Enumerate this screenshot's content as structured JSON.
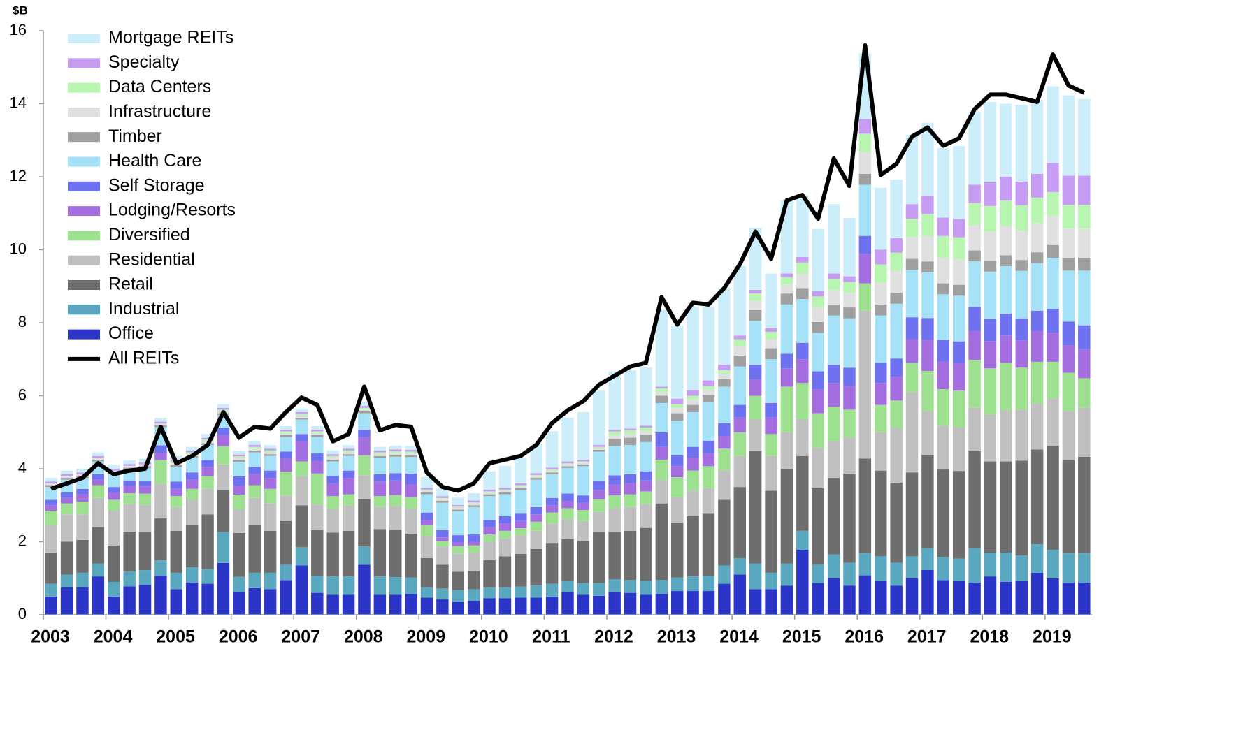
{
  "chart_data": {
    "type": "bar",
    "stacked": true,
    "y_unit_label": "$B",
    "categories": [
      "2003",
      null,
      null,
      null,
      "2004",
      null,
      null,
      null,
      "2005",
      null,
      null,
      null,
      "2006",
      null,
      null,
      null,
      "2007",
      null,
      null,
      null,
      "2008",
      null,
      null,
      null,
      "2009",
      null,
      null,
      null,
      "2010",
      null,
      null,
      null,
      "2011",
      null,
      null,
      null,
      "2012",
      null,
      null,
      null,
      "2013",
      null,
      null,
      null,
      "2014",
      null,
      null,
      null,
      "2015",
      null,
      null,
      null,
      "2016",
      null,
      null,
      null,
      "2017",
      null,
      null,
      null,
      "2018",
      null,
      null,
      null,
      "2019",
      null,
      null
    ],
    "ylim": [
      0,
      16
    ],
    "yticks": [
      0,
      2,
      4,
      6,
      8,
      10,
      12,
      14,
      16
    ],
    "grid": false,
    "legend": "upper left",
    "series": [
      {
        "name": "Office",
        "color": "#2b35c8",
        "values": [
          0.5,
          0.75,
          0.75,
          1.05,
          0.5,
          0.78,
          0.82,
          1.07,
          0.7,
          0.88,
          0.85,
          1.42,
          0.62,
          0.73,
          0.7,
          0.95,
          1.35,
          0.6,
          0.55,
          0.55,
          1.37,
          0.55,
          0.55,
          0.57,
          0.47,
          0.42,
          0.35,
          0.38,
          0.45,
          0.45,
          0.47,
          0.47,
          0.5,
          0.62,
          0.55,
          0.52,
          0.62,
          0.6,
          0.55,
          0.57,
          0.65,
          0.65,
          0.65,
          0.85,
          1.1,
          0.7,
          0.7,
          0.8,
          1.78,
          0.87,
          1.0,
          0.8,
          1.08,
          0.92,
          0.8,
          1.0,
          1.23,
          0.95,
          0.92,
          0.88,
          1.05,
          0.9,
          0.92,
          1.15,
          1.0,
          0.88,
          0.88
        ]
      },
      {
        "name": "Industrial",
        "color": "#5aa8c0",
        "values": [
          0.35,
          0.35,
          0.4,
          0.35,
          0.4,
          0.4,
          0.4,
          0.42,
          0.45,
          0.42,
          0.4,
          0.85,
          0.42,
          0.42,
          0.45,
          0.42,
          0.5,
          0.47,
          0.5,
          0.5,
          0.5,
          0.5,
          0.48,
          0.45,
          0.28,
          0.3,
          0.33,
          0.32,
          0.3,
          0.3,
          0.3,
          0.33,
          0.35,
          0.3,
          0.32,
          0.35,
          0.35,
          0.35,
          0.38,
          0.38,
          0.37,
          0.4,
          0.42,
          0.5,
          0.45,
          0.7,
          0.45,
          0.6,
          0.52,
          0.5,
          0.65,
          0.62,
          0.6,
          0.68,
          0.62,
          0.6,
          0.6,
          0.63,
          0.62,
          0.95,
          0.65,
          0.8,
          0.7,
          0.78,
          0.78,
          0.8,
          0.8
        ]
      },
      {
        "name": "Retail",
        "color": "#6e6e6e",
        "values": [
          0.85,
          0.9,
          0.9,
          1.0,
          1.0,
          1.1,
          1.05,
          1.15,
          1.15,
          1.15,
          1.5,
          1.15,
          1.2,
          1.3,
          1.15,
          1.2,
          1.15,
          1.25,
          1.2,
          1.25,
          1.3,
          1.3,
          1.3,
          1.2,
          0.8,
          0.65,
          0.5,
          0.5,
          0.75,
          0.85,
          0.9,
          1.0,
          1.1,
          1.15,
          1.15,
          1.4,
          1.3,
          1.35,
          1.45,
          2.1,
          1.5,
          1.65,
          1.7,
          1.8,
          1.95,
          3.1,
          2.25,
          2.6,
          2.05,
          2.1,
          2.1,
          2.45,
          2.6,
          2.35,
          2.2,
          2.3,
          2.55,
          2.4,
          2.4,
          2.65,
          2.5,
          2.5,
          2.6,
          2.6,
          2.85,
          2.55,
          2.65
        ]
      },
      {
        "name": "Residential",
        "color": "#c0c0c0",
        "values": [
          0.75,
          0.75,
          0.7,
          0.8,
          0.95,
          0.75,
          0.75,
          0.95,
          0.65,
          0.7,
          0.7,
          0.7,
          0.65,
          0.75,
          0.75,
          0.7,
          0.8,
          0.7,
          0.65,
          0.7,
          0.65,
          0.6,
          0.65,
          0.7,
          0.6,
          0.5,
          0.5,
          0.5,
          0.5,
          0.5,
          0.5,
          0.5,
          0.55,
          0.55,
          0.55,
          0.55,
          0.65,
          0.65,
          0.65,
          0.65,
          0.7,
          0.7,
          0.7,
          0.8,
          0.85,
          0.85,
          0.95,
          1.0,
          1.0,
          1.1,
          1.0,
          1.0,
          4.05,
          1.05,
          1.5,
          2.2,
          1.2,
          1.2,
          1.2,
          1.2,
          1.3,
          1.4,
          1.4,
          1.25,
          1.3,
          1.35,
          1.35
        ]
      },
      {
        "name": "Diversified",
        "color": "#9de08f",
        "values": [
          0.4,
          0.3,
          0.35,
          0.35,
          0.3,
          0.3,
          0.3,
          0.65,
          0.3,
          0.3,
          0.35,
          0.5,
          0.4,
          0.35,
          0.4,
          0.65,
          0.4,
          0.85,
          0.35,
          0.3,
          0.55,
          0.3,
          0.3,
          0.3,
          0.3,
          0.15,
          0.2,
          0.2,
          0.2,
          0.2,
          0.2,
          0.25,
          0.3,
          0.3,
          0.3,
          0.35,
          0.35,
          0.35,
          0.35,
          0.55,
          0.55,
          0.55,
          0.6,
          0.6,
          0.65,
          0.65,
          0.6,
          1.25,
          1.0,
          0.95,
          0.95,
          0.75,
          0.75,
          0.75,
          0.75,
          0.8,
          1.1,
          1.0,
          1.0,
          1.3,
          1.25,
          1.3,
          1.15,
          1.15,
          1.0,
          1.05,
          0.8
        ]
      },
      {
        "name": "Lodging/Resorts",
        "color": "#a56ee0",
        "values": [
          0.15,
          0.15,
          0.2,
          0.15,
          0.2,
          0.2,
          0.2,
          0.2,
          0.2,
          0.25,
          0.25,
          0.3,
          0.25,
          0.3,
          0.3,
          0.35,
          0.55,
          0.35,
          0.35,
          0.45,
          0.5,
          0.4,
          0.4,
          0.35,
          0.15,
          0.1,
          0.1,
          0.1,
          0.2,
          0.2,
          0.2,
          0.2,
          0.2,
          0.2,
          0.2,
          0.25,
          0.3,
          0.3,
          0.3,
          0.35,
          0.3,
          0.35,
          0.35,
          0.35,
          0.4,
          0.45,
          0.45,
          0.5,
          0.65,
          0.65,
          0.65,
          0.65,
          0.8,
          0.6,
          0.65,
          0.65,
          0.85,
          0.75,
          0.75,
          0.8,
          0.75,
          0.75,
          0.75,
          0.85,
          0.8,
          0.75,
          0.8
        ]
      },
      {
        "name": "Self Storage",
        "color": "#6e72f0",
        "values": [
          0.15,
          0.15,
          0.15,
          0.15,
          0.15,
          0.15,
          0.15,
          0.2,
          0.2,
          0.2,
          0.2,
          0.2,
          0.25,
          0.2,
          0.2,
          0.2,
          0.2,
          0.2,
          0.2,
          0.2,
          0.2,
          0.2,
          0.2,
          0.3,
          0.2,
          0.2,
          0.2,
          0.2,
          0.2,
          0.2,
          0.2,
          0.2,
          0.2,
          0.2,
          0.2,
          0.25,
          0.25,
          0.25,
          0.25,
          0.4,
          0.3,
          0.3,
          0.35,
          0.35,
          0.35,
          0.4,
          0.4,
          0.4,
          0.45,
          0.5,
          0.5,
          0.5,
          0.5,
          0.55,
          0.5,
          0.6,
          0.6,
          0.6,
          0.6,
          0.65,
          0.6,
          0.6,
          0.6,
          0.55,
          0.65,
          0.65,
          0.65
        ]
      },
      {
        "name": "Health Care",
        "color": "#a6e2f7",
        "values": [
          0.35,
          0.35,
          0.3,
          0.35,
          0.35,
          0.3,
          0.35,
          0.5,
          0.4,
          0.4,
          0.4,
          0.35,
          0.4,
          0.4,
          0.4,
          0.4,
          0.4,
          0.45,
          0.4,
          0.4,
          0.45,
          0.45,
          0.45,
          0.45,
          0.5,
          0.75,
          0.65,
          0.75,
          0.65,
          0.6,
          0.65,
          0.75,
          0.65,
          0.7,
          0.8,
          0.8,
          0.8,
          0.8,
          0.8,
          0.8,
          0.95,
          0.95,
          1.05,
          1.0,
          1.05,
          1.2,
          1.2,
          1.35,
          1.2,
          1.05,
          1.35,
          1.35,
          1.4,
          1.3,
          1.5,
          1.3,
          1.25,
          1.25,
          1.25,
          1.25,
          1.3,
          1.3,
          1.3,
          1.3,
          1.4,
          1.4,
          1.5
        ]
      },
      {
        "name": "Timber",
        "color": "#a0a0a0",
        "values": [
          0.05,
          0.05,
          0.05,
          0.05,
          0.05,
          0.05,
          0.05,
          0.05,
          0.05,
          0.05,
          0.05,
          0.05,
          0.05,
          0.05,
          0.05,
          0.05,
          0.05,
          0.05,
          0.05,
          0.05,
          0.05,
          0.05,
          0.05,
          0.05,
          0.05,
          0.05,
          0.05,
          0.05,
          0.05,
          0.05,
          0.05,
          0.05,
          0.05,
          0.05,
          0.05,
          0.05,
          0.2,
          0.2,
          0.2,
          0.2,
          0.2,
          0.2,
          0.2,
          0.2,
          0.3,
          0.3,
          0.3,
          0.3,
          0.3,
          0.3,
          0.3,
          0.3,
          0.3,
          0.3,
          0.3,
          0.3,
          0.3,
          0.3,
          0.3,
          0.3,
          0.3,
          0.3,
          0.3,
          0.3,
          0.35,
          0.35,
          0.35
        ]
      },
      {
        "name": "Infrastructure",
        "color": "#e0e0e0",
        "values": [
          0.05,
          0.05,
          0.05,
          0.05,
          0.05,
          0.05,
          0.05,
          0.05,
          0.05,
          0.05,
          0.05,
          0.05,
          0.05,
          0.05,
          0.05,
          0.05,
          0.05,
          0.05,
          0.05,
          0.05,
          0.05,
          0.05,
          0.05,
          0.05,
          0.05,
          0.05,
          0.05,
          0.05,
          0.05,
          0.05,
          0.05,
          0.05,
          0.05,
          0.05,
          0.05,
          0.05,
          0.1,
          0.1,
          0.1,
          0.1,
          0.15,
          0.15,
          0.15,
          0.15,
          0.25,
          0.25,
          0.25,
          0.25,
          0.4,
          0.4,
          0.4,
          0.4,
          0.6,
          0.6,
          0.6,
          0.6,
          0.7,
          0.7,
          0.7,
          0.7,
          0.8,
          0.8,
          0.8,
          0.8,
          0.8,
          0.8,
          0.8
        ]
      },
      {
        "name": "Data Centers",
        "color": "#b8f5b0",
        "values": [
          0,
          0,
          0,
          0,
          0,
          0,
          0,
          0,
          0.05,
          0.05,
          0.05,
          0.05,
          0.05,
          0.05,
          0.05,
          0.05,
          0.05,
          0.05,
          0.05,
          0.05,
          0.05,
          0.05,
          0.05,
          0.05,
          0.03,
          0.03,
          0.03,
          0.03,
          0.03,
          0.03,
          0.03,
          0.03,
          0.03,
          0.03,
          0.03,
          0.03,
          0.1,
          0.1,
          0.1,
          0.1,
          0.1,
          0.1,
          0.1,
          0.1,
          0.2,
          0.2,
          0.2,
          0.2,
          0.3,
          0.3,
          0.3,
          0.3,
          0.5,
          0.5,
          0.5,
          0.5,
          0.6,
          0.6,
          0.6,
          0.6,
          0.7,
          0.7,
          0.7,
          0.7,
          0.65,
          0.65,
          0.65
        ]
      },
      {
        "name": "Specialty",
        "color": "#c79cf3",
        "values": [
          0.05,
          0.05,
          0.05,
          0.05,
          0.05,
          0.05,
          0.05,
          0.05,
          0.05,
          0.05,
          0.05,
          0.05,
          0.05,
          0.05,
          0.05,
          0.05,
          0.05,
          0.05,
          0.05,
          0.05,
          0.05,
          0.05,
          0.05,
          0.05,
          0.05,
          0.05,
          0.05,
          0.05,
          0.05,
          0.05,
          0.05,
          0.05,
          0.05,
          0.05,
          0.05,
          0.05,
          0.05,
          0.05,
          0.05,
          0.05,
          0.15,
          0.15,
          0.15,
          0.15,
          0.1,
          0.1,
          0.1,
          0.1,
          0.15,
          0.15,
          0.15,
          0.15,
          0.4,
          0.4,
          0.4,
          0.4,
          0.5,
          0.5,
          0.5,
          0.5,
          0.65,
          0.65,
          0.65,
          0.65,
          0.8,
          0.8,
          0.8
        ]
      },
      {
        "name": "Mortgage REITs",
        "color": "#cceefa",
        "values": [
          0.1,
          0.1,
          0.1,
          0.1,
          0.1,
          0.1,
          0.1,
          0.1,
          0.1,
          0.1,
          0.1,
          0.1,
          0.1,
          0.1,
          0.1,
          0.1,
          0.1,
          0.1,
          0.1,
          0.1,
          0.1,
          0.1,
          0.1,
          0.1,
          0.3,
          0.2,
          0.2,
          0.2,
          0.5,
          0.6,
          0.7,
          0.8,
          1.0,
          1.2,
          1.3,
          1.5,
          1.6,
          1.6,
          1.6,
          2.1,
          2.0,
          2.3,
          2.0,
          2.1,
          1.9,
          1.7,
          1.5,
          2.0,
          1.7,
          1.7,
          1.9,
          1.6,
          1.8,
          1.7,
          1.6,
          1.9,
          2.0,
          1.9,
          2.0,
          2.0,
          2.2,
          2.0,
          2.1,
          2.0,
          2.1,
          2.2,
          2.1
        ]
      },
      {
        "name": "All REITs",
        "type": "line",
        "color": "#000000",
        "values": [
          3.45,
          3.6,
          3.75,
          4.15,
          3.85,
          3.95,
          4.0,
          5.15,
          4.15,
          4.35,
          4.65,
          5.55,
          4.85,
          5.15,
          5.1,
          5.55,
          5.95,
          5.75,
          4.75,
          4.95,
          6.25,
          5.05,
          5.2,
          5.15,
          3.9,
          3.5,
          3.4,
          3.6,
          4.15,
          4.25,
          4.35,
          4.65,
          5.25,
          5.6,
          5.85,
          6.3,
          6.55,
          6.8,
          6.9,
          8.7,
          7.95,
          8.55,
          8.5,
          8.95,
          9.6,
          10.5,
          9.75,
          11.35,
          11.5,
          10.85,
          12.5,
          11.75,
          15.6,
          12.05,
          12.35,
          13.1,
          13.35,
          12.85,
          13.05,
          13.85,
          14.25,
          14.25,
          14.15,
          14.05,
          15.35,
          14.5,
          14.3
        ]
      }
    ]
  }
}
